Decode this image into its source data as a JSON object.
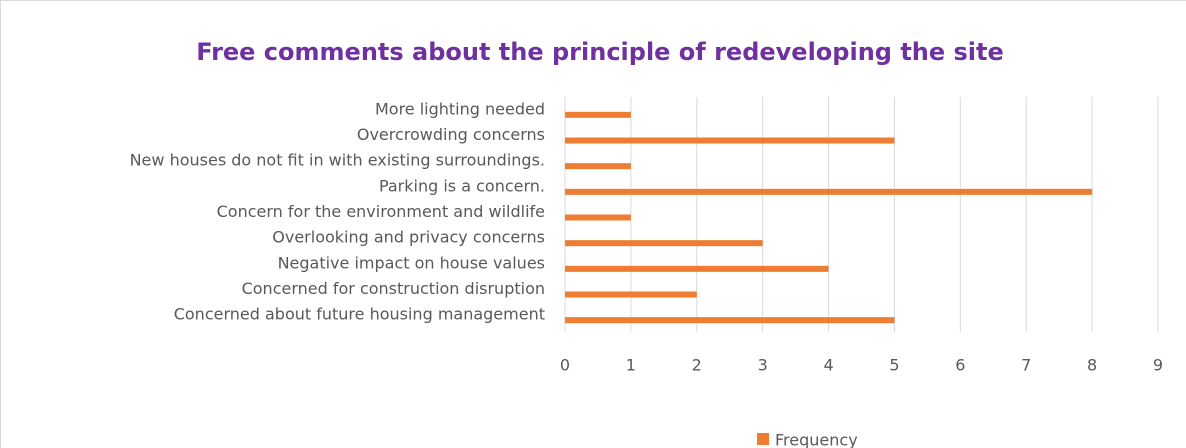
{
  "chart_data": {
    "type": "bar",
    "orientation": "horizontal",
    "title": "Free comments about the principle of redeveloping the site",
    "categories": [
      "More lighting needed",
      "Overcrowding concerns",
      "New houses do not fit in with existing surroundings.",
      "Parking is a concern.",
      "Concern for the environment and wildlife",
      "Overlooking and privacy concerns",
      "Negative impact on house values",
      "Concerned for construction disruption",
      "Concerned about future housing management"
    ],
    "series": [
      {
        "name": "Frequency",
        "color": "#ed7d31",
        "values": [
          1,
          5,
          1,
          8,
          1,
          3,
          4,
          2,
          5
        ]
      }
    ],
    "xlim": [
      0,
      9
    ],
    "xticks": [
      0,
      1,
      2,
      3,
      4,
      5,
      6,
      7,
      8,
      9
    ],
    "grid": true,
    "legend": "bottom"
  }
}
